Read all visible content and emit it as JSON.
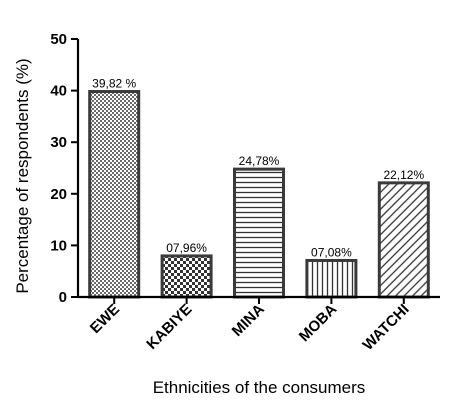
{
  "chart_data": {
    "type": "bar",
    "categories": [
      "EWE",
      "KABIYE",
      "MINA",
      "MOBA",
      "WATCHI"
    ],
    "values": [
      39.82,
      7.96,
      24.78,
      7.08,
      22.12
    ],
    "data_labels": [
      "39,82 %",
      "07,96%",
      "24,78%",
      "07,08%",
      "22,12%"
    ],
    "patterns": [
      "checker-fine",
      "checker",
      "horizontal-lines",
      "vertical-lines",
      "diagonal-lines"
    ],
    "title": "",
    "xlabel": "Ethnicities of the consumers",
    "ylabel": "Percentage of respondents (%)",
    "ylim": [
      0,
      50
    ],
    "yticks": [
      0,
      10,
      20,
      30,
      40,
      50
    ],
    "grid": false,
    "legend": "none",
    "colors": {
      "bar_edge": "#3a3a3a",
      "axis": "#000000",
      "fill": "#ffffff"
    }
  }
}
